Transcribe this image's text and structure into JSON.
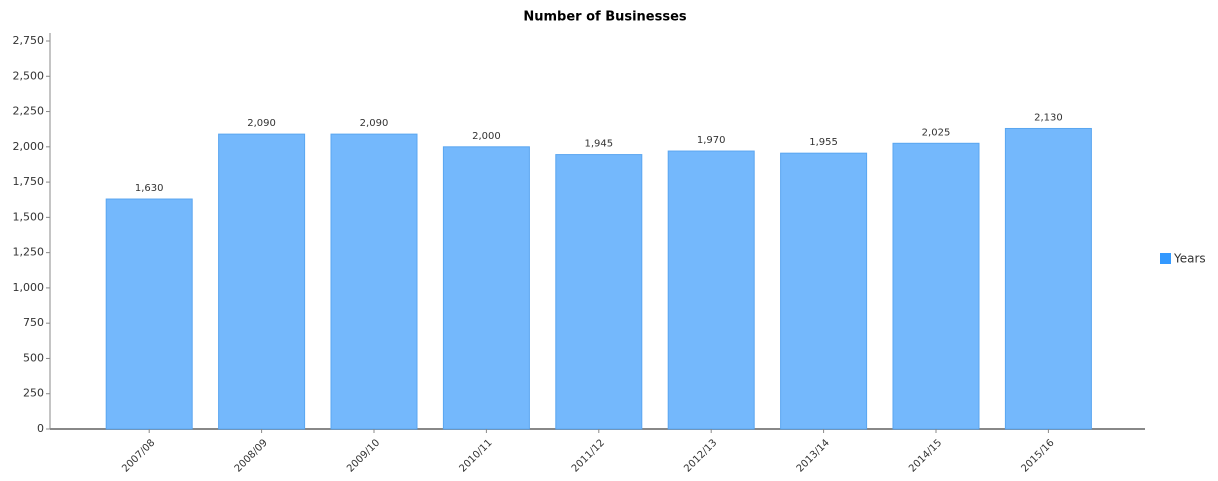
{
  "chart_data": {
    "type": "bar",
    "title": "Number of Businesses",
    "categories": [
      "2007/08",
      "2008/09",
      "2009/10",
      "2010/11",
      "2011/12",
      "2012/13",
      "2013/14",
      "2014/15",
      "2015/16"
    ],
    "series": [
      {
        "name": "Years",
        "color": "#74b8fc",
        "values": [
          1630,
          2090,
          2090,
          2000,
          1945,
          1970,
          1955,
          2025,
          2130
        ],
        "value_labels": [
          "1,630",
          "2,090",
          "2,090",
          "2,000",
          "1,945",
          "1,970",
          "1,955",
          "2,025",
          "2,130"
        ]
      }
    ],
    "ylim": [
      0,
      2750
    ],
    "yticks": [
      0,
      250,
      500,
      750,
      {
        "value": 1000,
        "label": "1,000"
      },
      {
        "value": 1250,
        "label": "1,250"
      },
      {
        "value": 1500,
        "label": "1,500"
      },
      {
        "value": 1750,
        "label": "1,750"
      },
      {
        "value": 2000,
        "label": "2,000"
      },
      {
        "value": 2250,
        "label": "2,250"
      },
      {
        "value": 2500,
        "label": "2,500"
      },
      {
        "value": 2750,
        "label": "2,750"
      }
    ],
    "legend": "right",
    "grid": false
  }
}
